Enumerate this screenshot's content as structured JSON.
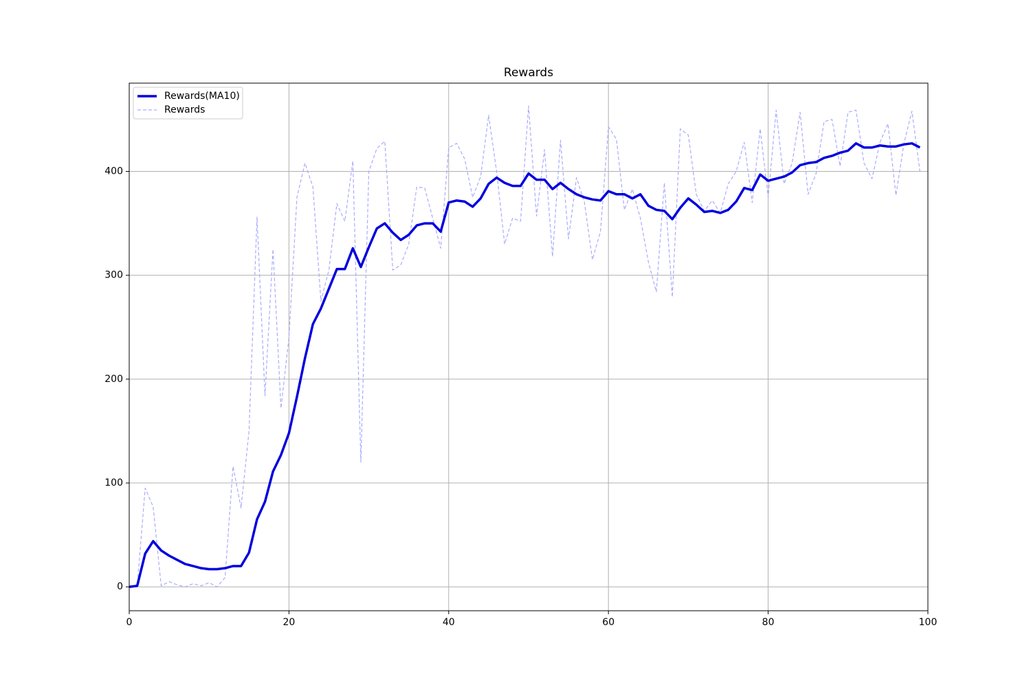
{
  "chart_data": {
    "type": "line",
    "title": "Rewards",
    "x": [
      0,
      1,
      2,
      3,
      4,
      5,
      6,
      7,
      8,
      9,
      10,
      11,
      12,
      13,
      14,
      15,
      16,
      17,
      18,
      19,
      20,
      21,
      22,
      23,
      24,
      25,
      26,
      27,
      28,
      29,
      30,
      31,
      32,
      33,
      34,
      35,
      36,
      37,
      38,
      39,
      40,
      41,
      42,
      43,
      44,
      45,
      46,
      47,
      48,
      49,
      50,
      51,
      52,
      53,
      54,
      55,
      56,
      57,
      58,
      59,
      60,
      61,
      62,
      63,
      64,
      65,
      66,
      67,
      68,
      69,
      70,
      71,
      72,
      73,
      74,
      75,
      76,
      77,
      78,
      79,
      80,
      81,
      82,
      83,
      84,
      85,
      86,
      87,
      88,
      89,
      90,
      91,
      92,
      93,
      94,
      95,
      96,
      97,
      98,
      99
    ],
    "series": [
      {
        "name": "Rewards(MA10)",
        "color": "#0000dd",
        "style": "solid",
        "values": [
          0,
          1,
          32,
          44,
          35,
          30,
          26,
          22,
          20,
          18,
          17,
          17,
          18,
          20,
          20,
          33,
          65,
          82,
          111,
          127,
          148,
          183,
          220,
          253,
          268,
          287,
          306,
          306,
          326,
          308,
          327,
          345,
          350,
          341,
          334,
          339,
          348,
          350,
          350,
          342,
          370,
          372,
          371,
          366,
          374,
          388,
          394,
          389,
          386,
          386,
          398,
          392,
          392,
          383,
          389,
          383,
          378,
          375,
          373,
          372,
          381,
          378,
          378,
          374,
          378,
          367,
          363,
          362,
          354,
          365,
          374,
          368,
          361,
          362,
          360,
          363,
          371,
          384,
          382,
          397,
          391,
          393,
          395,
          399,
          406,
          408,
          409,
          413,
          415,
          418,
          420,
          427,
          423,
          423,
          425,
          424,
          424,
          426,
          427,
          423
        ]
      },
      {
        "name": "Rewards",
        "color": "#aaaaff",
        "style": "dashed",
        "values": [
          0,
          1,
          95,
          77,
          1,
          5,
          2,
          0,
          3,
          1,
          4,
          0,
          9,
          116,
          76,
          150,
          356,
          184,
          325,
          172,
          240,
          375,
          408,
          385,
          275,
          305,
          369,
          352,
          410,
          120,
          400,
          422,
          429,
          305,
          310,
          330,
          385,
          384,
          355,
          326,
          423,
          427,
          412,
          375,
          395,
          454,
          400,
          330,
          355,
          352,
          463,
          357,
          421,
          318,
          430,
          335,
          394,
          370,
          315,
          342,
          443,
          431,
          363,
          383,
          355,
          313,
          284,
          389,
          279,
          441,
          435,
          378,
          362,
          372,
          360,
          388,
          400,
          428,
          370,
          441,
          375,
          459,
          388,
          408,
          457,
          378,
          398,
          448,
          450,
          405,
          457,
          459,
          408,
          393,
          428,
          446,
          377,
          427,
          458,
          400
        ]
      }
    ],
    "xlim": [
      0,
      100
    ],
    "xticks": [
      0,
      20,
      40,
      60,
      80,
      100
    ],
    "ylim": [
      -23,
      485
    ],
    "yticks": [
      0,
      100,
      200,
      300,
      400
    ],
    "grid": true,
    "legend": "upper left"
  }
}
